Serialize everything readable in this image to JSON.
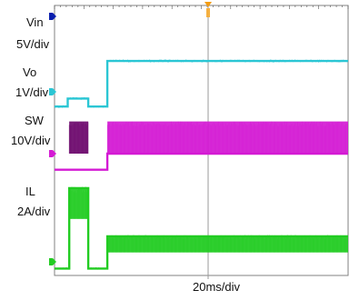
{
  "chart_data": {
    "type": "line",
    "time_scale": "20ms/div",
    "channels": [
      {
        "name": "Vin",
        "scale": "5V/div",
        "color": "#0a1fae",
        "noise": 0.1,
        "points": [
          [
            0,
            5.8
          ],
          [
            200,
            5.8
          ]
        ]
      },
      {
        "name": "Vo",
        "scale": "1V/div",
        "color": "#2bc6d4",
        "noise": 0.04,
        "points": [
          [
            0,
            -0.55
          ],
          [
            9,
            -0.55
          ],
          [
            9,
            -0.25
          ],
          [
            23,
            -0.25
          ],
          [
            23,
            -0.55
          ],
          [
            36,
            -0.55
          ],
          [
            36,
            1.15
          ],
          [
            200,
            1.15
          ]
        ]
      },
      {
        "name": "SW",
        "scale": "10V/div",
        "color": "#d41ad4",
        "burst_color": "#6e0a6e",
        "points": [
          [
            0,
            -0.6
          ],
          [
            36,
            -0.6
          ],
          [
            36,
            0.0
          ],
          [
            200,
            0.0
          ]
        ],
        "bursts": [
          {
            "x": [
              10,
              23
            ],
            "range": [
              0.0,
              1.2
            ],
            "color": "#6e0a6e"
          },
          {
            "x": [
              36,
              200
            ],
            "range": [
              0.0,
              1.2
            ],
            "color": "#d41ad4"
          }
        ]
      },
      {
        "name": "IL",
        "scale": "2A/div",
        "color": "#22cc22",
        "noise": 0.03,
        "points": [
          [
            0,
            -0.25
          ],
          [
            10,
            -0.25
          ],
          [
            10,
            2.75
          ],
          [
            23,
            2.75
          ],
          [
            23,
            -0.25
          ],
          [
            36,
            -0.25
          ],
          [
            36,
            0.95
          ],
          [
            200,
            0.95
          ]
        ],
        "bursts": [
          {
            "x": [
              10,
              23
            ],
            "range": [
              1.6,
              2.75
            ],
            "color": "#22cc22"
          },
          {
            "x": [
              36,
              200
            ],
            "range": [
              0.35,
              0.95
            ],
            "color": "#22cc22"
          }
        ]
      }
    ],
    "xlim": [
      0,
      200
    ],
    "grid": false
  }
}
